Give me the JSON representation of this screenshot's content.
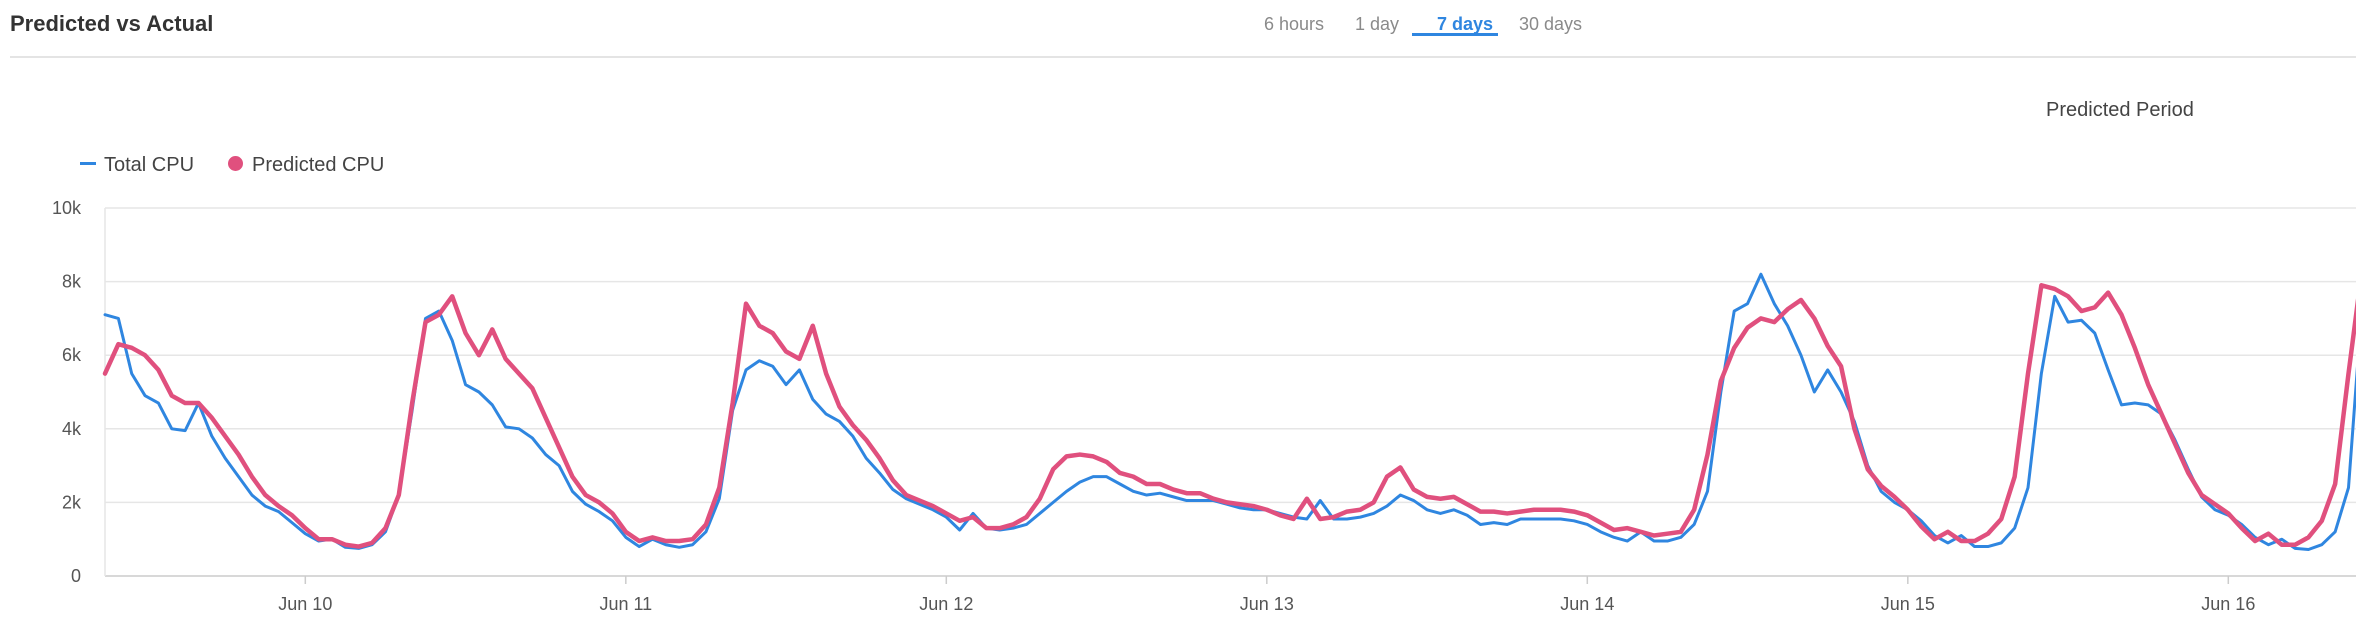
{
  "header": {
    "title": "Predicted vs Actual",
    "tabs": [
      {
        "label": "6 hours",
        "active": false
      },
      {
        "label": "1 day",
        "active": false
      },
      {
        "label": "7 days",
        "active": true
      },
      {
        "label": "30 days",
        "active": false
      }
    ]
  },
  "period_label": "Predicted Period",
  "colors": {
    "total": "#2f86e0",
    "predicted": "#e0507e",
    "grid": "#e6e6e6",
    "tab_active": "#2f86e0"
  },
  "chart_data": {
    "type": "line",
    "title": "",
    "xlabel": "",
    "ylabel": "",
    "ylim": [
      0,
      10000
    ],
    "y_ticks": [
      "0",
      "2k",
      "4k",
      "6k",
      "8k",
      "10k"
    ],
    "x_tick_labels": [
      "Jun 10",
      "Jun 11",
      "Jun 12",
      "Jun 13",
      "Jun 14",
      "Jun 15",
      "Jun 16"
    ],
    "x_start": "Jun 9 09:00",
    "x_end": "Jun 16 13:00",
    "x_step_hours": 1,
    "grid": true,
    "legend_position": "top-left",
    "legend": [
      "Total CPU",
      "Predicted CPU"
    ],
    "series": [
      {
        "name": "Total CPU",
        "values": [
          7100,
          7000,
          5500,
          4900,
          4700,
          4000,
          3950,
          4700,
          3800,
          3200,
          2700,
          2200,
          1900,
          1750,
          1450,
          1150,
          950,
          1000,
          780,
          750,
          850,
          1200,
          2200,
          4500,
          7000,
          7200,
          6400,
          5200,
          5000,
          4650,
          4050,
          4000,
          3750,
          3300,
          3000,
          2300,
          1950,
          1750,
          1500,
          1050,
          800,
          1000,
          850,
          780,
          850,
          1200,
          2100,
          4500,
          5600,
          5850,
          5700,
          5200,
          5600,
          4800,
          4400,
          4200,
          3800,
          3200,
          2800,
          2350,
          2100,
          1950,
          1800,
          1600,
          1250,
          1700,
          1300,
          1250,
          1300,
          1400,
          1700,
          2000,
          2300,
          2550,
          2700,
          2700,
          2500,
          2300,
          2200,
          2250,
          2150,
          2050,
          2050,
          2050,
          1950,
          1850,
          1800,
          1800,
          1700,
          1600,
          1550,
          2050,
          1550,
          1550,
          1600,
          1700,
          1900,
          2200,
          2050,
          1800,
          1700,
          1800,
          1650,
          1400,
          1450,
          1400,
          1550,
          1550,
          1550,
          1550,
          1500,
          1400,
          1200,
          1050,
          950,
          1200,
          950,
          950,
          1050,
          1400,
          2300,
          5000,
          7200,
          7400,
          8200,
          7400,
          6800,
          6000,
          5000,
          5600,
          5000,
          4200,
          3000,
          2300,
          2000,
          1800,
          1500,
          1100,
          900,
          1100,
          800,
          800,
          900,
          1300,
          2400,
          5500,
          7600,
          6900,
          6950,
          6600,
          5600,
          4650,
          4700,
          4650,
          4400,
          3700,
          2900,
          2150,
          1800,
          1650,
          1400,
          1050,
          850,
          1000,
          750,
          720,
          850,
          1200,
          2400,
          7300
        ]
      },
      {
        "name": "Predicted CPU",
        "values": [
          5500,
          6300,
          6200,
          6000,
          5600,
          4900,
          4700,
          4700,
          4300,
          3800,
          3300,
          2700,
          2200,
          1900,
          1650,
          1300,
          1000,
          1000,
          850,
          800,
          900,
          1300,
          2200,
          4700,
          6900,
          7100,
          7600,
          6600,
          6000,
          6700,
          5900,
          5500,
          5100,
          4300,
          3500,
          2700,
          2200,
          2000,
          1700,
          1200,
          950,
          1050,
          950,
          950,
          1000,
          1400,
          2400,
          4700,
          7400,
          6800,
          6600,
          6100,
          5900,
          6800,
          5500,
          4600,
          4100,
          3700,
          3200,
          2600,
          2200,
          2050,
          1900,
          1700,
          1500,
          1600,
          1300,
          1300,
          1400,
          1600,
          2100,
          2900,
          3250,
          3300,
          3250,
          3100,
          2800,
          2700,
          2500,
          2500,
          2350,
          2250,
          2250,
          2100,
          2000,
          1950,
          1900,
          1800,
          1650,
          1550,
          2100,
          1550,
          1600,
          1750,
          1800,
          2000,
          2700,
          2950,
          2350,
          2150,
          2100,
          2150,
          1950,
          1750,
          1750,
          1700,
          1750,
          1800,
          1800,
          1800,
          1750,
          1650,
          1450,
          1250,
          1300,
          1200,
          1100,
          1150,
          1200,
          1800,
          3300,
          5300,
          6200,
          6750,
          7000,
          6900,
          7250,
          7500,
          7000,
          6250,
          5700,
          4000,
          2900,
          2450,
          2150,
          1800,
          1350,
          1000,
          1200,
          950,
          950,
          1150,
          1550,
          2700,
          5500,
          7900,
          7800,
          7600,
          7200,
          7300,
          7700,
          7100,
          6200,
          5200,
          4400,
          3600,
          2800,
          2200,
          1950,
          1700,
          1300,
          950,
          1150,
          850,
          850,
          1050,
          1500,
          2500,
          5500,
          8300
        ]
      }
    ]
  }
}
